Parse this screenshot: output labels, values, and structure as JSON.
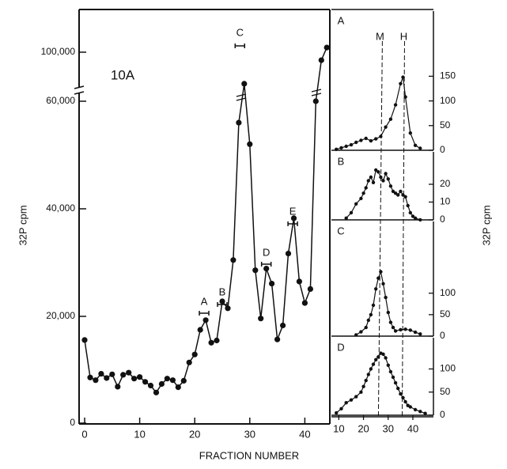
{
  "figure": {
    "ylabel_left": "32P cpm",
    "ylabel_right": "32P cpm",
    "xlabel": "FRACTION NUMBER"
  },
  "chart_data": [
    {
      "type": "line",
      "panel": "main",
      "title": "10A",
      "xlabel": "FRACTION NUMBER",
      "ylabel": "32P cpm",
      "xticks": [
        0,
        10,
        20,
        30,
        40
      ],
      "xlim": [
        0,
        45
      ],
      "yticks_lower": [
        "0",
        "20,000",
        "40,000"
      ],
      "yticks_upper": [
        "60,000",
        "100,000"
      ],
      "ylim_lower": [
        0,
        60000
      ],
      "ylim_upper": [
        60000,
        100000
      ],
      "axis_break": "between 60,000 and 100,000 (log-compressed upper segment)",
      "grid": false,
      "series": [
        {
          "x": [
            0,
            1,
            2,
            3,
            4,
            5,
            6,
            7,
            8,
            9,
            10,
            11,
            12,
            13,
            14,
            15,
            16,
            17,
            18,
            19,
            20,
            21,
            22,
            23,
            24,
            25,
            26,
            27,
            28,
            29,
            30,
            31,
            32,
            33,
            34,
            35,
            36,
            37,
            38,
            39,
            40,
            41,
            42,
            43,
            44
          ],
          "y": [
            15500,
            8500,
            8000,
            9200,
            8400,
            9100,
            6800,
            9000,
            9400,
            8300,
            8600,
            7700,
            7000,
            5700,
            7300,
            8300,
            8000,
            6700,
            7900,
            11300,
            12800,
            17400,
            19200,
            15000,
            15400,
            22700,
            21400,
            30400,
            56000,
            72000,
            52000,
            28500,
            19500,
            28800,
            26000,
            15600,
            18200,
            31600,
            38200,
            26400,
            22400,
            25000,
            60000,
            92000,
            105000
          ]
        }
      ],
      "annotations": [
        {
          "label": "A",
          "x": 21.7
        },
        {
          "label": "B",
          "x": 25.0
        },
        {
          "label": "C",
          "x": 28.2
        },
        {
          "label": "D",
          "x": 33.0
        },
        {
          "label": "E",
          "x": 37.8
        }
      ]
    },
    {
      "type": "line",
      "panel": "A",
      "xlim": [
        7,
        47
      ],
      "ylim": [
        0,
        175
      ],
      "yticks": [
        0,
        50,
        100,
        150
      ],
      "markers": [
        {
          "label": "M",
          "x": 27
        },
        {
          "label": "H",
          "x": 36
        }
      ],
      "series": [
        {
          "x": [
            9,
            11,
            13,
            15,
            17,
            19,
            21,
            23,
            25,
            27,
            29,
            31,
            33,
            35,
            36,
            37,
            39,
            41,
            43
          ],
          "y": [
            2,
            5,
            8,
            11,
            16,
            20,
            24,
            19,
            23,
            28,
            47,
            63,
            92,
            135,
            148,
            108,
            35,
            10,
            4
          ]
        }
      ]
    },
    {
      "type": "line",
      "panel": "B",
      "xlim": [
        7,
        47
      ],
      "ylim": [
        0,
        32
      ],
      "yticks": [
        0,
        10,
        20
      ],
      "series": [
        {
          "x": [
            13,
            15,
            17,
            19,
            20,
            21,
            22,
            23,
            24,
            25,
            26,
            27,
            28,
            29,
            30,
            31,
            32,
            33,
            34,
            35,
            36,
            37,
            38,
            39,
            40,
            41,
            43
          ],
          "y": [
            1,
            4,
            9,
            12,
            15,
            18,
            22,
            24,
            21,
            28,
            27,
            24,
            22,
            26,
            23,
            19,
            16,
            15,
            14,
            16,
            14,
            13,
            8,
            4,
            2,
            1,
            0
          ]
        }
      ]
    },
    {
      "type": "line",
      "panel": "C",
      "xlim": [
        7,
        47
      ],
      "ylim": [
        0,
        175
      ],
      "yticks": [
        0,
        50,
        100
      ],
      "series": [
        {
          "x": [
            17,
            19,
            21,
            22,
            23,
            24,
            25,
            26,
            27,
            28,
            29,
            30,
            31,
            32,
            33,
            35,
            37,
            39,
            41,
            43
          ],
          "y": [
            3,
            10,
            20,
            37,
            50,
            72,
            110,
            135,
            150,
            122,
            90,
            55,
            32,
            20,
            12,
            15,
            16,
            14,
            9,
            5
          ]
        }
      ]
    },
    {
      "type": "line",
      "panel": "D",
      "xlabel": "",
      "xlim": [
        7,
        47
      ],
      "xticks": [
        10,
        20,
        30,
        40
      ],
      "ylim": [
        0,
        150
      ],
      "yticks": [
        0,
        50,
        100
      ],
      "series": [
        {
          "x": [
            9,
            11,
            13,
            15,
            17,
            19,
            20,
            21,
            22,
            23,
            24,
            25,
            26,
            27,
            28,
            29,
            30,
            31,
            32,
            33,
            34,
            35,
            36,
            37,
            38,
            39,
            41,
            43,
            45
          ],
          "y": [
            5,
            14,
            27,
            33,
            40,
            50,
            62,
            75,
            88,
            100,
            110,
            120,
            126,
            134,
            132,
            124,
            108,
            94,
            82,
            70,
            58,
            46,
            38,
            29,
            21,
            18,
            12,
            8,
            4
          ]
        }
      ]
    }
  ]
}
